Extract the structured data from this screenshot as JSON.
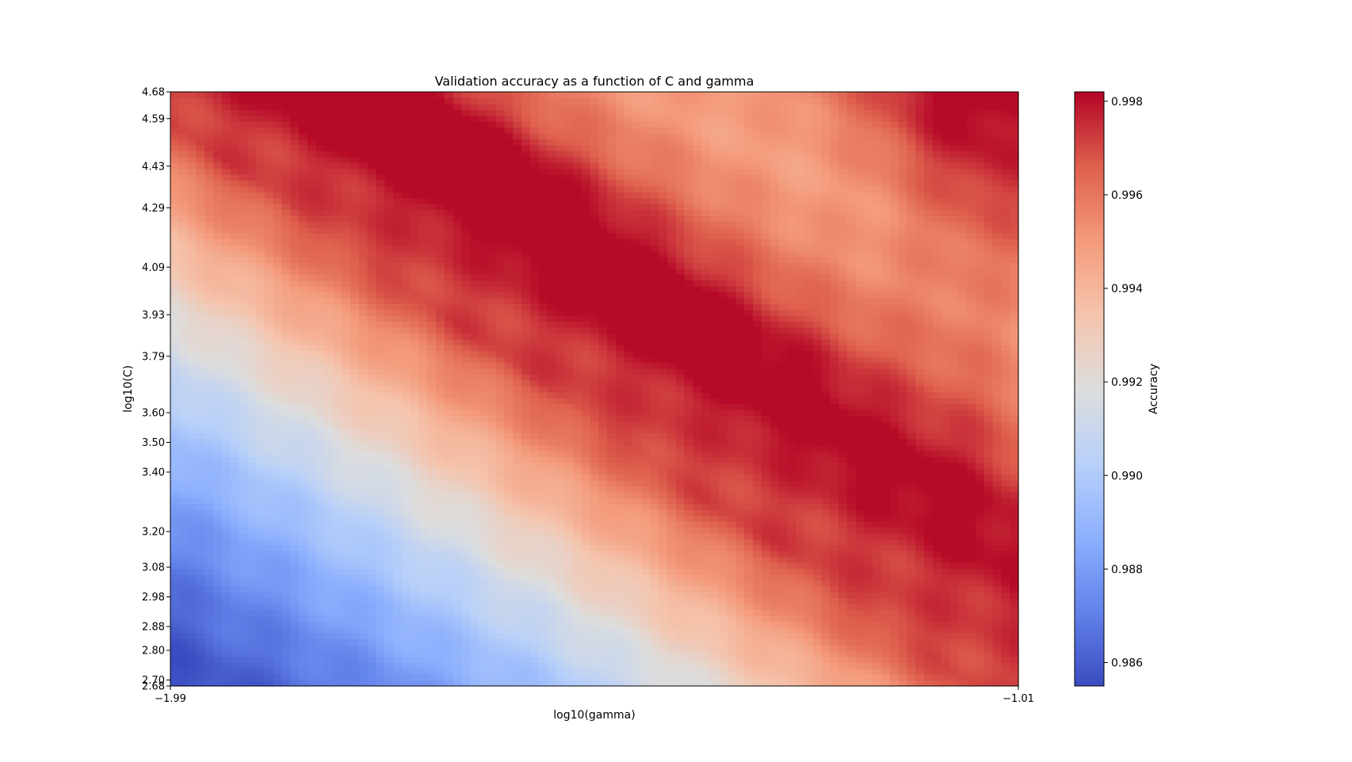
{
  "chart_data": {
    "type": "heatmap",
    "title": "Validation accuracy as a function of C and gamma",
    "xlabel": "log10(gamma)",
    "ylabel": "log10(C)",
    "x_range": [
      -1.99,
      -1.01
    ],
    "x_step": 0.01,
    "y_range": [
      2.68,
      4.68
    ],
    "y_step": 0.02,
    "colormap": "coolwarm",
    "colorbar": {
      "label": "Accuracy",
      "vmin": 0.9855,
      "vmax": 0.9982,
      "ticks": [
        "0.986",
        "0.988",
        "0.990",
        "0.992",
        "0.994",
        "0.996",
        "0.998"
      ]
    },
    "x_tick_labels": [
      "−1.99",
      "−1.01"
    ],
    "y_tick_labels": [
      "4.68",
      "4.59",
      "4.43",
      "4.29",
      "4.09",
      "3.93",
      "3.79",
      "3.60",
      "3.50",
      "3.40",
      "3.20",
      "3.08",
      "2.98",
      "2.88",
      "2.80",
      "2.70",
      "2.68"
    ],
    "value_surface": {
      "description_of_values": "accuracy as a function of (x=log10 gamma, y=log10 C)",
      "min_corner": {
        "x": -1.99,
        "y": 2.68,
        "value": 0.9856
      },
      "ridge_peak": {
        "x": -1.58,
        "y": 4.35,
        "value": 0.9978
      },
      "right_edge_peak": {
        "x": -1.02,
        "y": 3.55,
        "value": 0.998
      },
      "top_right": {
        "x": -1.05,
        "y": 4.6,
        "value": 0.9972
      },
      "bottom_right": {
        "x": -1.05,
        "y": 2.72,
        "value": 0.9948
      }
    }
  }
}
